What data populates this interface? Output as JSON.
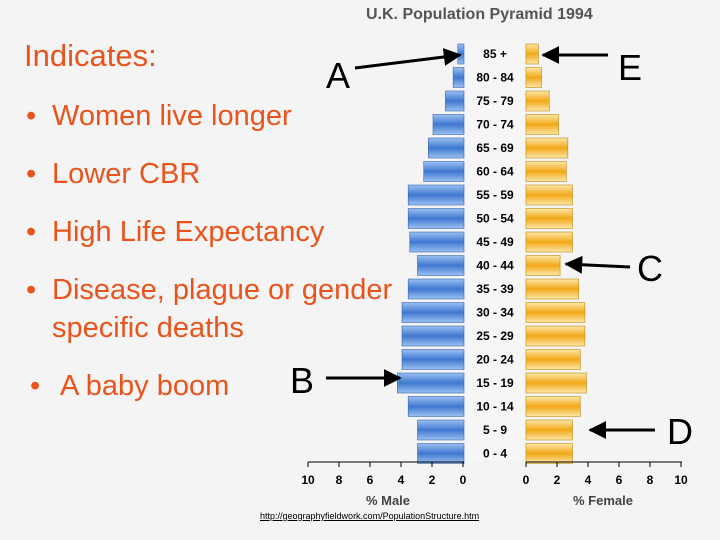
{
  "slide": {
    "heading": "Indicates:",
    "bullets": [
      "Women live longer",
      "Lower CBR",
      "High Life Expectancy",
      "Disease, plague or gender",
      "specific deaths",
      "A  baby boom"
    ],
    "labels": {
      "a": "A",
      "b": "B",
      "c": "C",
      "d": "D",
      "e": "E"
    },
    "source_url": "http://geographyfieldwork.com/PopulationStructure.htm"
  },
  "colors": {
    "text": "#e8541c",
    "male_bar": "#4a7fd0",
    "female_bar": "#f0a818",
    "background": "#f4f4f4"
  },
  "chart_data": {
    "type": "bar",
    "title": "U.K. Population Pyramid 1994",
    "categories": [
      "85 +",
      "80 - 84",
      "75 - 79",
      "70 - 74",
      "65 - 69",
      "60 - 64",
      "55 - 59",
      "50 - 54",
      "45 - 49",
      "40 - 44",
      "35 - 39",
      "30 - 34",
      "25 - 29",
      "20 - 24",
      "15 - 19",
      "10 - 14",
      "5 - 9",
      "0 - 4"
    ],
    "series": [
      {
        "name": "% Male",
        "values": [
          0.4,
          0.7,
          1.2,
          2.0,
          2.3,
          2.6,
          3.6,
          3.6,
          3.5,
          3.0,
          3.6,
          4.0,
          4.0,
          4.0,
          4.3,
          3.6,
          3.0,
          3.0
        ]
      },
      {
        "name": "% Female",
        "values": [
          0.8,
          1.0,
          1.5,
          2.1,
          2.7,
          2.6,
          3.0,
          3.0,
          3.0,
          2.2,
          3.4,
          3.8,
          3.8,
          3.5,
          3.9,
          3.5,
          3.0,
          3.0
        ]
      }
    ],
    "xlabel_male": "% Male",
    "xlabel_female": "% Female",
    "ticks_male": [
      "10",
      "8",
      "6",
      "4",
      "2",
      "0"
    ],
    "ticks_female": [
      "0",
      "2",
      "4",
      "6",
      "8",
      "10"
    ],
    "xlim": [
      0,
      10
    ]
  }
}
